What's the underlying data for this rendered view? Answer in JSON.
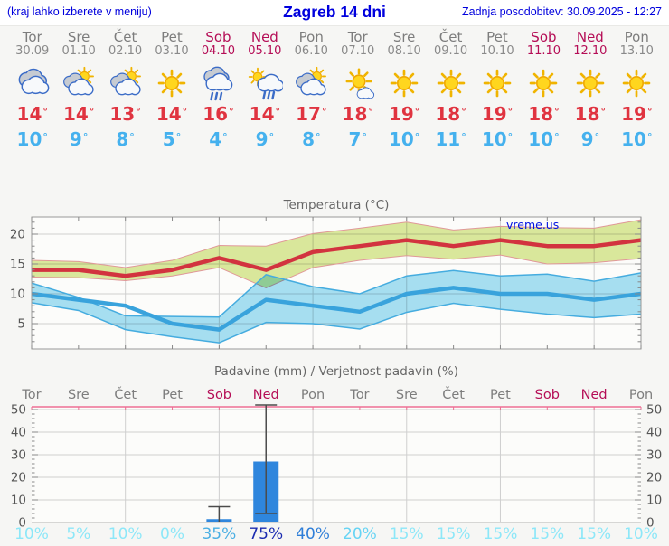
{
  "header": {
    "left": "(kraj lahko izberete v meniju)",
    "title": "Zagreb 14 dni",
    "updated": "Zadnja posodobitev: 30.09.2025 - 12:27"
  },
  "watermark": "vreme.us",
  "days": [
    {
      "name": "Tor",
      "date": "30.09",
      "weekend": false,
      "icon": "cloudy",
      "tmax": 14,
      "tmin": 10,
      "precip_prob": 10
    },
    {
      "name": "Sre",
      "date": "01.10",
      "weekend": false,
      "icon": "sun-cloud",
      "tmax": 14,
      "tmin": 9,
      "precip_prob": 5
    },
    {
      "name": "Čet",
      "date": "02.10",
      "weekend": false,
      "icon": "sun-cloud",
      "tmax": 13,
      "tmin": 8,
      "precip_prob": 10
    },
    {
      "name": "Pet",
      "date": "03.10",
      "weekend": false,
      "icon": "sunny",
      "tmax": 14,
      "tmin": 5,
      "precip_prob": 0
    },
    {
      "name": "Sob",
      "date": "04.10",
      "weekend": true,
      "icon": "rain",
      "tmax": 16,
      "tmin": 4,
      "precip_prob": 35
    },
    {
      "name": "Ned",
      "date": "05.10",
      "weekend": true,
      "icon": "sun-rain",
      "tmax": 14,
      "tmin": 9,
      "precip_prob": 75
    },
    {
      "name": "Pon",
      "date": "06.10",
      "weekend": false,
      "icon": "sun-cloud",
      "tmax": 17,
      "tmin": 8,
      "precip_prob": 40
    },
    {
      "name": "Tor",
      "date": "07.10",
      "weekend": false,
      "icon": "sun-small-cloud",
      "tmax": 18,
      "tmin": 7,
      "precip_prob": 20
    },
    {
      "name": "Sre",
      "date": "08.10",
      "weekend": false,
      "icon": "sunny",
      "tmax": 19,
      "tmin": 10,
      "precip_prob": 15
    },
    {
      "name": "Čet",
      "date": "09.10",
      "weekend": false,
      "icon": "sunny",
      "tmax": 18,
      "tmin": 11,
      "precip_prob": 15
    },
    {
      "name": "Pet",
      "date": "10.10",
      "weekend": false,
      "icon": "sunny",
      "tmax": 19,
      "tmin": 10,
      "precip_prob": 15
    },
    {
      "name": "Sob",
      "date": "11.10",
      "weekend": true,
      "icon": "sunny",
      "tmax": 18,
      "tmin": 10,
      "precip_prob": 15
    },
    {
      "name": "Ned",
      "date": "12.10",
      "weekend": true,
      "icon": "sunny",
      "tmax": 18,
      "tmin": 9,
      "precip_prob": 15
    },
    {
      "name": "Pon",
      "date": "13.10",
      "weekend": false,
      "icon": "sunny",
      "tmax": 19,
      "tmin": 10,
      "precip_prob": 10
    }
  ],
  "colors": {
    "header_blue": "#0000dd",
    "tmax_red": "#e03440",
    "tmin_blue": "#45b1ee",
    "weekend": "#b50d56",
    "day_gray": "#7d7d7d",
    "grid": "#cfcfcf",
    "axis_text": "#555555",
    "title_gray": "#666666",
    "line_max": "#d2333f",
    "line_min": "#39a3dc",
    "band_max_fill": "#dcea9e",
    "band_max_edge": "#e09898",
    "band_min_fill": "#92d9f2",
    "band_min_edge": "#45acdf",
    "bar_blue": "#2f86dd",
    "whisker": "#4b4b4b",
    "pink_axis": "#ed6e93",
    "prob_light": "#8de7f8",
    "prob_20": "#66d4f4",
    "prob_35": "#49aee3",
    "prob_40": "#2e7ed8",
    "prob_75": "#1a2bb0"
  },
  "chart_data": [
    {
      "type": "line",
      "title": "Temperatura (°C)",
      "xlabel": "",
      "ylabel": "",
      "categories": [
        "Tor 30.09",
        "Sre 01.10",
        "Čet 02.10",
        "Pet 03.10",
        "Sob 04.10",
        "Ned 05.10",
        "Pon 06.10",
        "Tor 07.10",
        "Sre 08.10",
        "Čet 09.10",
        "Pet 10.10",
        "Sob 11.10",
        "Ned 12.10",
        "Pon 13.10"
      ],
      "ylim": [
        1,
        23
      ],
      "yticks": [
        5,
        10,
        15,
        20
      ],
      "grid": true,
      "legend": "none",
      "watermark": "vreme.us",
      "series": [
        {
          "name": "max temperature",
          "style": "thick line",
          "values": [
            14,
            14,
            13,
            14,
            16,
            14,
            17,
            18,
            19,
            18,
            19,
            18,
            18,
            19
          ]
        },
        {
          "name": "min temperature",
          "style": "thick line",
          "values": [
            10,
            9,
            8,
            5,
            4,
            9,
            8,
            7,
            10,
            11,
            10,
            10,
            9,
            10
          ]
        },
        {
          "name": "max range upper",
          "style": "band edge",
          "values": [
            15.6,
            15.4,
            14.4,
            15.6,
            18.1,
            18.0,
            20.1,
            21.0,
            22.0,
            20.7,
            21.3,
            21.1,
            21.0,
            22.4
          ]
        },
        {
          "name": "max range lower",
          "style": "band edge",
          "values": [
            12.8,
            12.7,
            12.2,
            13.0,
            14.4,
            11.0,
            14.4,
            15.6,
            16.4,
            15.8,
            16.5,
            15.0,
            15.2,
            15.9
          ]
        },
        {
          "name": "min range upper",
          "style": "band edge",
          "values": [
            11.8,
            9.4,
            6.3,
            6.2,
            6.1,
            13.2,
            11.2,
            10.0,
            13.0,
            13.9,
            13.0,
            13.3,
            12.1,
            13.5
          ]
        },
        {
          "name": "min range lower",
          "style": "band edge",
          "values": [
            8.5,
            7.2,
            4.0,
            2.8,
            1.8,
            5.2,
            5.0,
            4.1,
            6.9,
            8.4,
            7.4,
            6.6,
            6.0,
            6.6
          ]
        }
      ]
    },
    {
      "type": "bar",
      "title": "Padavine (mm) / Verjetnost padavin (%)",
      "xlabel": "",
      "ylabel": "",
      "categories": [
        "Tor",
        "Sre",
        "Čet",
        "Pet",
        "Sob",
        "Ned",
        "Pon",
        "Tor",
        "Sre",
        "Čet",
        "Pet",
        "Sob",
        "Ned",
        "Pon"
      ],
      "weekend_flags": [
        false,
        false,
        false,
        false,
        true,
        true,
        false,
        false,
        false,
        false,
        false,
        true,
        true,
        false
      ],
      "ylim": [
        0,
        52
      ],
      "yticks": [
        0,
        10,
        20,
        30,
        40,
        50
      ],
      "grid": true,
      "values_mm": [
        0,
        0,
        0,
        0,
        1.5,
        27,
        0,
        0,
        0,
        0,
        0,
        0,
        0,
        0
      ],
      "whiskers_mm": [
        null,
        null,
        null,
        null,
        [
          0,
          7
        ],
        [
          4,
          52
        ],
        null,
        null,
        null,
        null,
        null,
        null,
        null,
        null
      ],
      "probabilities_pct": [
        10,
        5,
        10,
        0,
        35,
        75,
        40,
        20,
        15,
        15,
        15,
        15,
        15,
        10
      ],
      "probability_labels": [
        "10%",
        "5%",
        "10%",
        "0%",
        "35%",
        "75%",
        "40%",
        "20%",
        "15%",
        "15%",
        "15%",
        "15%",
        "15%",
        "10%"
      ]
    }
  ]
}
